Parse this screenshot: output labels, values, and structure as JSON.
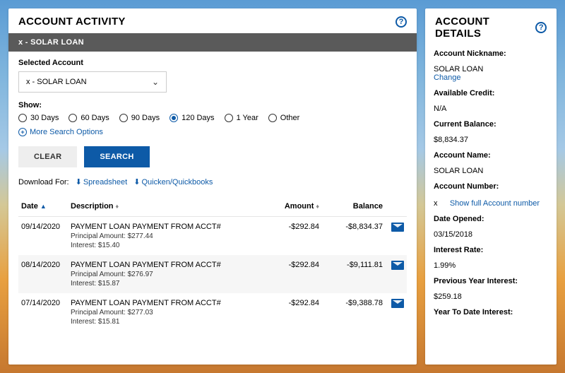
{
  "main": {
    "title": "ACCOUNT ACTIVITY",
    "accountBar": "x        - SOLAR LOAN",
    "selectedAccountLabel": "Selected Account",
    "selectedAccountValue": "x        - SOLAR LOAN",
    "showLabel": "Show:",
    "ranges": [
      "30 Days",
      "60 Days",
      "90 Days",
      "120 Days",
      "1 Year",
      "Other"
    ],
    "selectedRangeIndex": 3,
    "moreSearch": "More Search Options",
    "clearLabel": "CLEAR",
    "searchLabel": "SEARCH",
    "downloadLabel": "Download For:",
    "dlSpreadsheet": "Spreadsheet",
    "dlQuicken": "Quicken/Quickbooks",
    "cols": {
      "date": "Date",
      "desc": "Description",
      "amount": "Amount",
      "balance": "Balance"
    },
    "rows": [
      {
        "date": "09/14/2020",
        "desc": "PAYMENT LOAN PAYMENT FROM ACCT#",
        "principal": "Principal Amount: $277.44",
        "interest": "Interest: $15.40",
        "amount": "-$292.84",
        "balance": "-$8,834.37"
      },
      {
        "date": "08/14/2020",
        "desc": "PAYMENT LOAN PAYMENT FROM ACCT#",
        "principal": "Principal Amount: $276.97",
        "interest": "Interest: $15.87",
        "amount": "-$292.84",
        "balance": "-$9,111.81"
      },
      {
        "date": "07/14/2020",
        "desc": "PAYMENT LOAN PAYMENT FROM ACCT#",
        "principal": "Principal Amount: $277.03",
        "interest": "Interest: $15.81",
        "amount": "-$292.84",
        "balance": "-$9,388.78"
      }
    ]
  },
  "side": {
    "title": "ACCOUNT DETAILS",
    "nicknameLabel": "Account Nickname:",
    "nickname": "SOLAR LOAN",
    "changeLink": "Change",
    "availLabel": "Available Credit:",
    "avail": "N/A",
    "curBalLabel": "Current Balance:",
    "curBal": "$8,834.37",
    "acctNameLabel": "Account Name:",
    "acctName": "SOLAR LOAN",
    "acctNumLabel": "Account Number:",
    "acctNumMasked": "x",
    "showFull": "Show full Account number",
    "openedLabel": "Date Opened:",
    "opened": "03/15/2018",
    "rateLabel": "Interest Rate:",
    "rate": "1.99%",
    "prevIntLabel": "Previous Year Interest:",
    "prevInt": "$259.18",
    "ytdLabel": "Year To Date Interest:"
  },
  "colors": {
    "accent": "#0d5aa7"
  }
}
